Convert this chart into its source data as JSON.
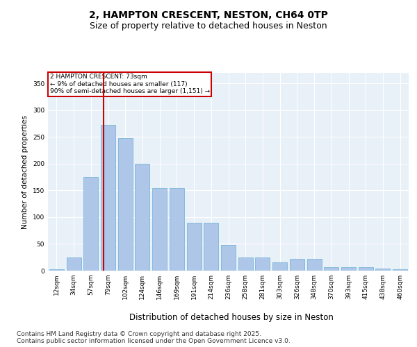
{
  "title1": "2, HAMPTON CRESCENT, NESTON, CH64 0TP",
  "title2": "Size of property relative to detached houses in Neston",
  "xlabel": "Distribution of detached houses by size in Neston",
  "ylabel": "Number of detached properties",
  "bar_labels": [
    "12sqm",
    "34sqm",
    "57sqm",
    "79sqm",
    "102sqm",
    "124sqm",
    "146sqm",
    "169sqm",
    "191sqm",
    "214sqm",
    "236sqm",
    "258sqm",
    "281sqm",
    "303sqm",
    "326sqm",
    "348sqm",
    "370sqm",
    "393sqm",
    "415sqm",
    "438sqm",
    "460sqm"
  ],
  "bar_values": [
    2,
    25,
    175,
    272,
    248,
    200,
    155,
    155,
    90,
    90,
    48,
    25,
    25,
    15,
    22,
    22,
    6,
    7,
    7,
    4,
    2
  ],
  "bar_color": "#aec6e8",
  "bar_edgecolor": "#6aaed6",
  "background_color": "#e8f0f8",
  "vline_color": "#cc0000",
  "annotation_line1": "2 HAMPTON CRESCENT: 73sqm",
  "annotation_line2": "← 9% of detached houses are smaller (117)",
  "annotation_line3": "90% of semi-detached houses are larger (1,151) →",
  "annotation_box_color": "#cc0000",
  "ylim": [
    0,
    370
  ],
  "yticks": [
    0,
    50,
    100,
    150,
    200,
    250,
    300,
    350
  ],
  "footer1": "Contains HM Land Registry data © Crown copyright and database right 2025.",
  "footer2": "Contains public sector information licensed under the Open Government Licence v3.0.",
  "title1_fontsize": 10,
  "title2_fontsize": 9,
  "xlabel_fontsize": 8.5,
  "ylabel_fontsize": 7.5,
  "tick_fontsize": 6.5,
  "footer_fontsize": 6.5
}
